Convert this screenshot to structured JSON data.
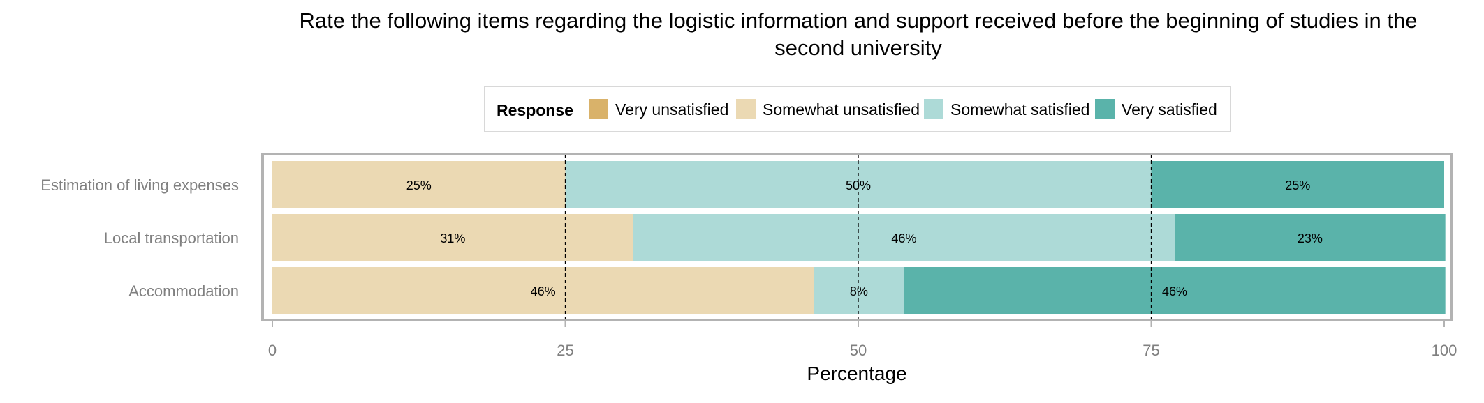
{
  "chart_data": {
    "type": "bar",
    "orientation": "horizontal",
    "stacked": true,
    "title": "Rate the following items regarding the logistic information and support received before the beginning of studies in the second university",
    "title_lines": [
      "Rate the following items regarding the logistic information and support received before the beginning of studies in the",
      "second university"
    ],
    "xlabel": "Percentage",
    "ylabel": "",
    "xlim": [
      0,
      100
    ],
    "xticks": [
      "0",
      "25",
      "50",
      "75",
      "100"
    ],
    "reference_lines": [
      25,
      50,
      75
    ],
    "legend": {
      "title": "Response",
      "position": "top"
    },
    "categories": [
      "Estimation of living expenses",
      "Local transportation",
      "Accommodation"
    ],
    "series": [
      {
        "name": "Very unsatisfied",
        "color": "#D9B26A",
        "values": [
          0,
          0,
          0
        ],
        "labels": [
          "",
          "",
          ""
        ]
      },
      {
        "name": "Somewhat unsatisfied",
        "color": "#EBD9B3",
        "values": [
          25,
          30.8,
          46.2
        ],
        "labels": [
          "25%",
          "31%",
          "46%"
        ]
      },
      {
        "name": "Somewhat satisfied",
        "color": "#ADDAD7",
        "values": [
          50,
          46.2,
          7.7
        ],
        "labels": [
          "50%",
          "46%",
          "8%"
        ]
      },
      {
        "name": "Very satisfied",
        "color": "#5AB3AA",
        "values": [
          25,
          23.1,
          46.2
        ],
        "labels": [
          "25%",
          "23%",
          "46%"
        ]
      }
    ]
  }
}
